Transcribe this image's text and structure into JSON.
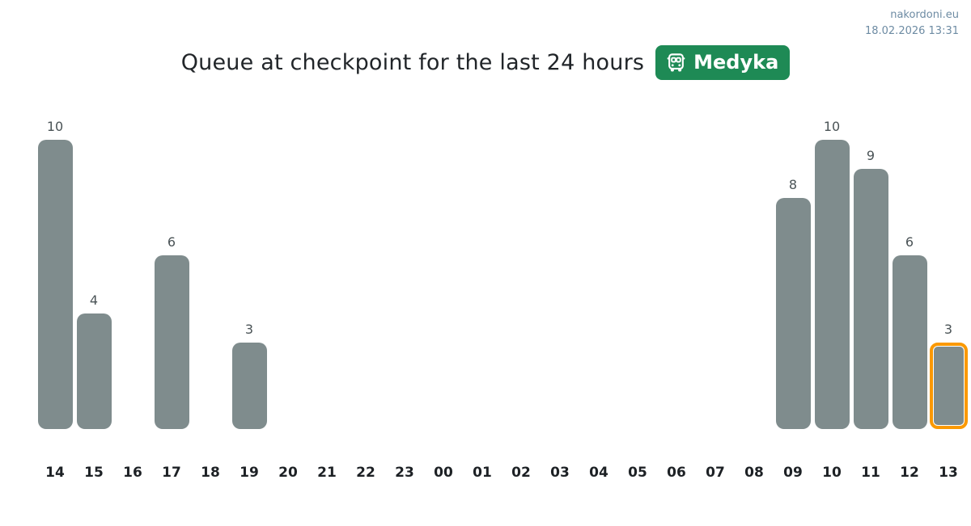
{
  "header": {
    "site": "nakordoni.eu",
    "timestamp": "18.02.2026 13:31"
  },
  "title": {
    "text": "Queue at checkpoint for the last 24 hours",
    "badge": {
      "label": "Medyka",
      "icon": "bus-icon",
      "color": "#1e8a55"
    }
  },
  "chart_data": {
    "type": "bar",
    "title": "Queue at checkpoint for the last 24 hours",
    "xlabel": "",
    "ylabel": "",
    "categories": [
      "14",
      "15",
      "16",
      "17",
      "18",
      "19",
      "20",
      "21",
      "22",
      "23",
      "00",
      "01",
      "02",
      "03",
      "04",
      "05",
      "06",
      "07",
      "08",
      "09",
      "10",
      "11",
      "12",
      "13"
    ],
    "values": [
      10,
      4,
      null,
      6,
      null,
      3,
      null,
      null,
      null,
      null,
      null,
      null,
      null,
      null,
      null,
      null,
      null,
      null,
      null,
      8,
      10,
      9,
      6,
      3
    ],
    "highlighted_category": "13",
    "ylim": [
      0,
      10
    ],
    "grid": false,
    "legend": false,
    "value_labels_shown": true,
    "bar_color": "#7f8c8d",
    "highlight_border_color": "#fb9902",
    "value_label_color": "#4a5356",
    "axis_label_color": "#1d2125"
  }
}
